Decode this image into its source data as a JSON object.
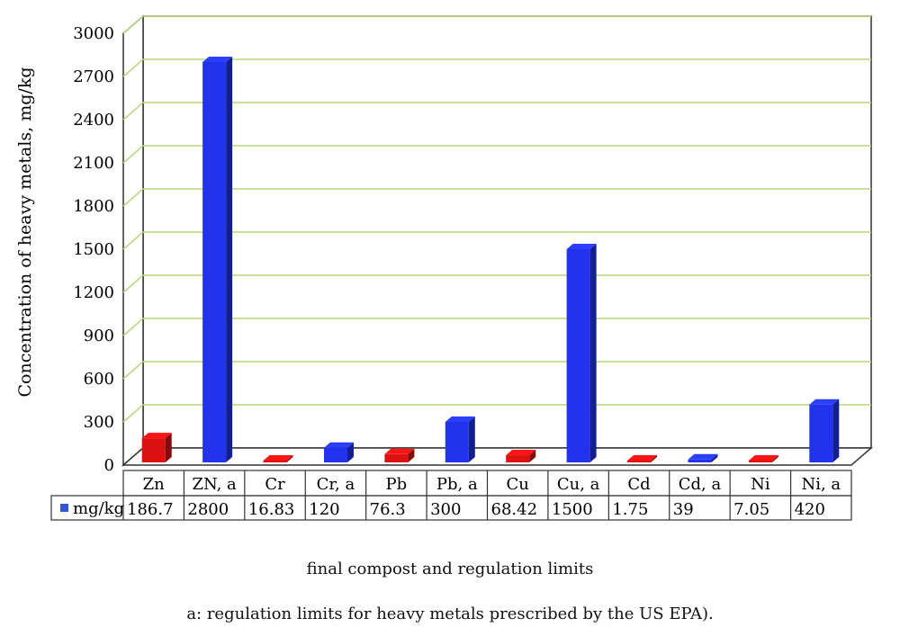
{
  "chart_data": {
    "type": "bar",
    "ylabel": "Concentration of heavy metals, mg/kg",
    "xlabel": "final compost and regulation limits",
    "footnote": "a: regulation limits for heavy metals prescribed by the US EPA).",
    "ylim": [
      0,
      3000
    ],
    "yticks": [
      "0",
      "300",
      "600",
      "900",
      "1200",
      "1500",
      "1800",
      "2100",
      "2400",
      "2700",
      "3000"
    ],
    "grid": true,
    "legend": "in data table row",
    "series": [
      {
        "name": "mg/kg",
        "values": [
          186.7,
          2800,
          16.83,
          120,
          76.3,
          300,
          68.42,
          1500,
          1.75,
          39,
          7.05,
          420
        ],
        "value_labels": [
          "186.7",
          "2800",
          "16.83",
          "120",
          "76.3",
          "300",
          "68.42",
          "1500",
          "1.75",
          "39",
          "7.05",
          "420"
        ]
      }
    ],
    "categories": [
      "Zn",
      "ZN, a",
      "Cr",
      "Cr, a",
      "Pb",
      "Pb, a",
      "Cu",
      "Cu, a",
      "Cd",
      "Cd, a",
      "Ni",
      "Ni, a"
    ],
    "bar_colors": [
      "#dd1111",
      "#2233ee",
      "#dd1111",
      "#2233ee",
      "#dd1111",
      "#2233ee",
      "#dd1111",
      "#2233ee",
      "#dd1111",
      "#2233ee",
      "#dd1111",
      "#2233ee"
    ],
    "legend_color": "#3355dd",
    "grid_color": "#b8d87a"
  }
}
